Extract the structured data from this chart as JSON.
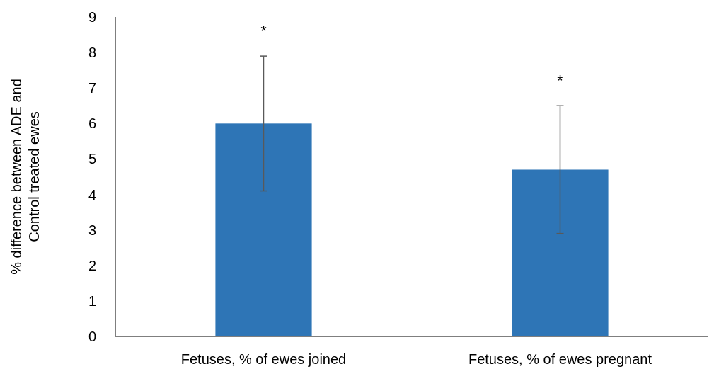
{
  "chart_data": {
    "type": "bar",
    "ylabel": "% difference between ADE and Control treated ewes",
    "categories": [
      "Fetuses, % of ewes joined",
      "Fetuses, % of ewes pregnant"
    ],
    "series": [
      {
        "color": "#2e75b6",
        "values": [
          6.0,
          4.7
        ],
        "errors": [
          [
            4.1,
            7.9
          ],
          [
            2.9,
            6.5
          ]
        ]
      }
    ],
    "ylim": [
      0,
      9
    ],
    "yticks": [
      0,
      1,
      2,
      3,
      4,
      5,
      6,
      7,
      8,
      9
    ],
    "grid": false,
    "annotations": [
      "*",
      "*"
    ]
  }
}
